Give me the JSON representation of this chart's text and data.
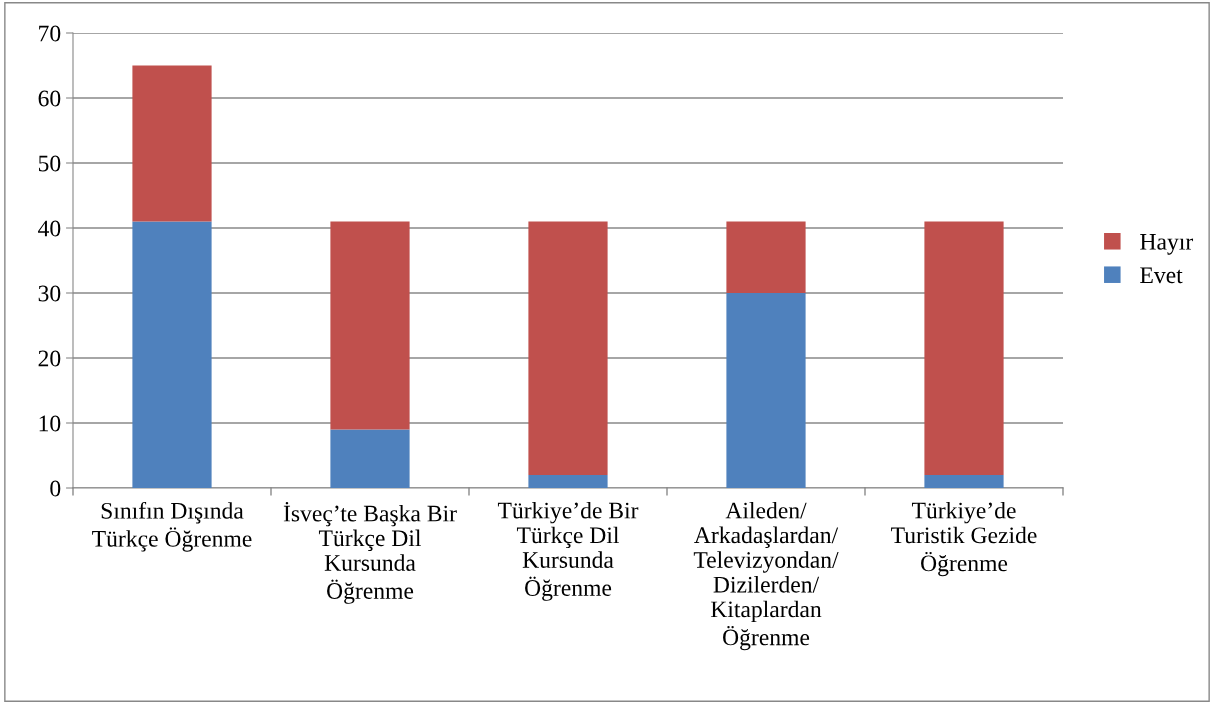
{
  "chart_data": {
    "type": "bar",
    "stacked": true,
    "categories": [
      "Sınıfın Dışında\nTürkçe Öğrenme",
      "İsveç’te Başka Bir\nTürkçe Dil\nKursunda\nÖğrenme",
      "Türkiye’de Bir\nTürkçe Dil\nKursunda\nÖğrenme",
      "Aileden/\nArkadaşlardan/\nTelevizyondan/\nDizilerden/\nKitaplardan\nÖğrenme",
      "Türkiye’de\nTuristik Gezide\nÖğrenme"
    ],
    "series": [
      {
        "name": "Evet",
        "color": "#4f81bd",
        "values": [
          41,
          9,
          2,
          30,
          2
        ]
      },
      {
        "name": "Hayır",
        "color": "#c0504d",
        "values": [
          24,
          32,
          39,
          11,
          39
        ]
      }
    ],
    "ylim": [
      0,
      70
    ],
    "yticks": [
      0,
      10,
      20,
      30,
      40,
      50,
      60,
      70
    ],
    "grid": "y",
    "legend": "right"
  }
}
